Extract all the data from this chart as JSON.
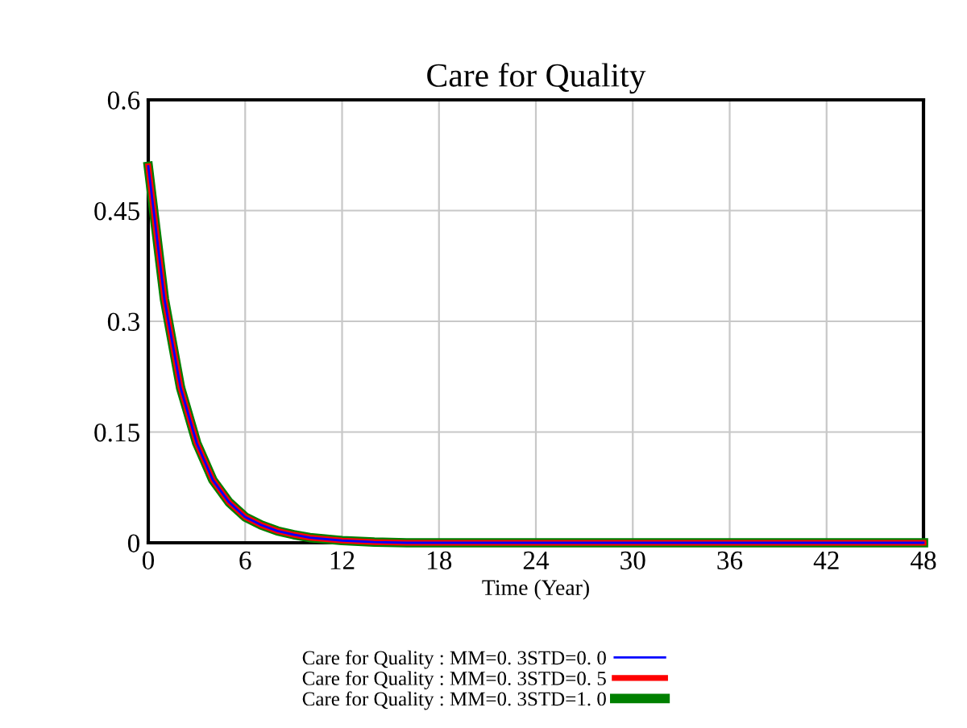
{
  "chart_data": {
    "type": "line",
    "title": "Care for Quality",
    "xlabel": "Time (Year)",
    "x": [
      0,
      1,
      2,
      3,
      4,
      5,
      6,
      7,
      8,
      9,
      10,
      12,
      14,
      16,
      20,
      24,
      28,
      32,
      36,
      40,
      44,
      48
    ],
    "series": [
      {
        "name": "Care for Quality : MM=0. 3STD=0. 0",
        "color": "#0000ff",
        "values": [
          0.51,
          0.33,
          0.21,
          0.135,
          0.085,
          0.055,
          0.035,
          0.024,
          0.016,
          0.011,
          0.007,
          0.003,
          0.001,
          0,
          0,
          0,
          0,
          0,
          0,
          0,
          0,
          0
        ]
      },
      {
        "name": "Care for Quality : MM=0. 3STD=0. 5",
        "color": "#ff0000",
        "values": [
          0.51,
          0.33,
          0.21,
          0.135,
          0.085,
          0.055,
          0.035,
          0.024,
          0.016,
          0.011,
          0.007,
          0.003,
          0.001,
          0,
          0,
          0,
          0,
          0,
          0,
          0,
          0,
          0
        ]
      },
      {
        "name": "Care for Quality : MM=0. 3STD=1. 0",
        "color": "#008000",
        "values": [
          0.51,
          0.33,
          0.21,
          0.135,
          0.085,
          0.055,
          0.035,
          0.024,
          0.016,
          0.011,
          0.007,
          0.003,
          0.001,
          0,
          0,
          0,
          0,
          0,
          0,
          0,
          0,
          0
        ]
      }
    ],
    "xlim": [
      0,
      48
    ],
    "xticks": [
      0,
      6,
      12,
      18,
      24,
      30,
      36,
      42,
      48
    ],
    "ylim": [
      0,
      0.6
    ],
    "yticks": [
      0,
      0.15,
      0.3,
      0.45,
      0.6
    ],
    "grid": true,
    "legend": "bottom",
    "line_style": "solid"
  }
}
